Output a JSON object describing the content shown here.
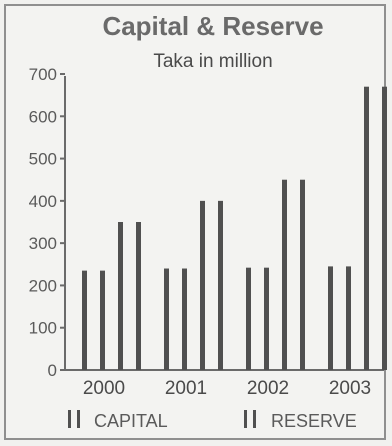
{
  "chart_data": {
    "type": "bar",
    "title": "Capital & Reserve",
    "subtitle": "Taka in million",
    "categories": [
      "2000",
      "2001",
      "2002",
      "2003"
    ],
    "series": [
      {
        "name": "CAPITAL",
        "values": [
          235,
          240,
          242,
          245
        ]
      },
      {
        "name": "RESERVE",
        "values": [
          350,
          400,
          450,
          670
        ]
      }
    ],
    "ylim": [
      0,
      700
    ],
    "yticks": [
      0,
      100,
      200,
      300,
      400,
      500,
      600,
      700
    ],
    "ytick_labels": [
      "0",
      "100",
      "200",
      "300",
      "400",
      "500",
      "600",
      "700"
    ],
    "grid": false,
    "legend_position": "bottom",
    "colors": {
      "bar": "#505050",
      "axis": "#6a6a6a"
    }
  }
}
